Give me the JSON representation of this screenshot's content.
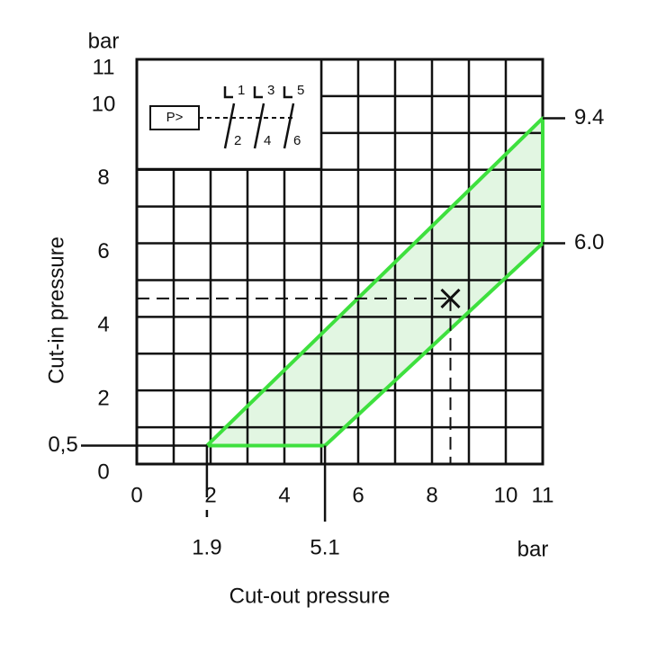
{
  "chart_data": {
    "type": "area",
    "x_label": "Cut-out pressure",
    "y_label": "Cut-in pressure",
    "x_unit": "bar",
    "y_unit": "bar",
    "xlim": [
      0,
      11
    ],
    "ylim": [
      0,
      11
    ],
    "xticks": [
      0,
      2,
      4,
      6,
      8,
      10,
      11
    ],
    "yticks": [
      0,
      2,
      4,
      6,
      8,
      10,
      11
    ],
    "grid": true,
    "grid_step": 1,
    "color": "#3ee03e",
    "fill": "#e2f6e2",
    "x_markers": [
      1.9,
      5.1
    ],
    "y_markers": [
      {
        "value": 0.5,
        "label": "0,5"
      }
    ],
    "right_markers": [
      9.4,
      {
        "value": 6.0,
        "label": "6.0"
      }
    ],
    "example_point": {
      "x": 8.5,
      "y": 4.5
    },
    "symbol": {
      "box": "P>",
      "terminals": [
        "1",
        "3",
        "5",
        "2",
        "4",
        "6"
      ]
    }
  }
}
